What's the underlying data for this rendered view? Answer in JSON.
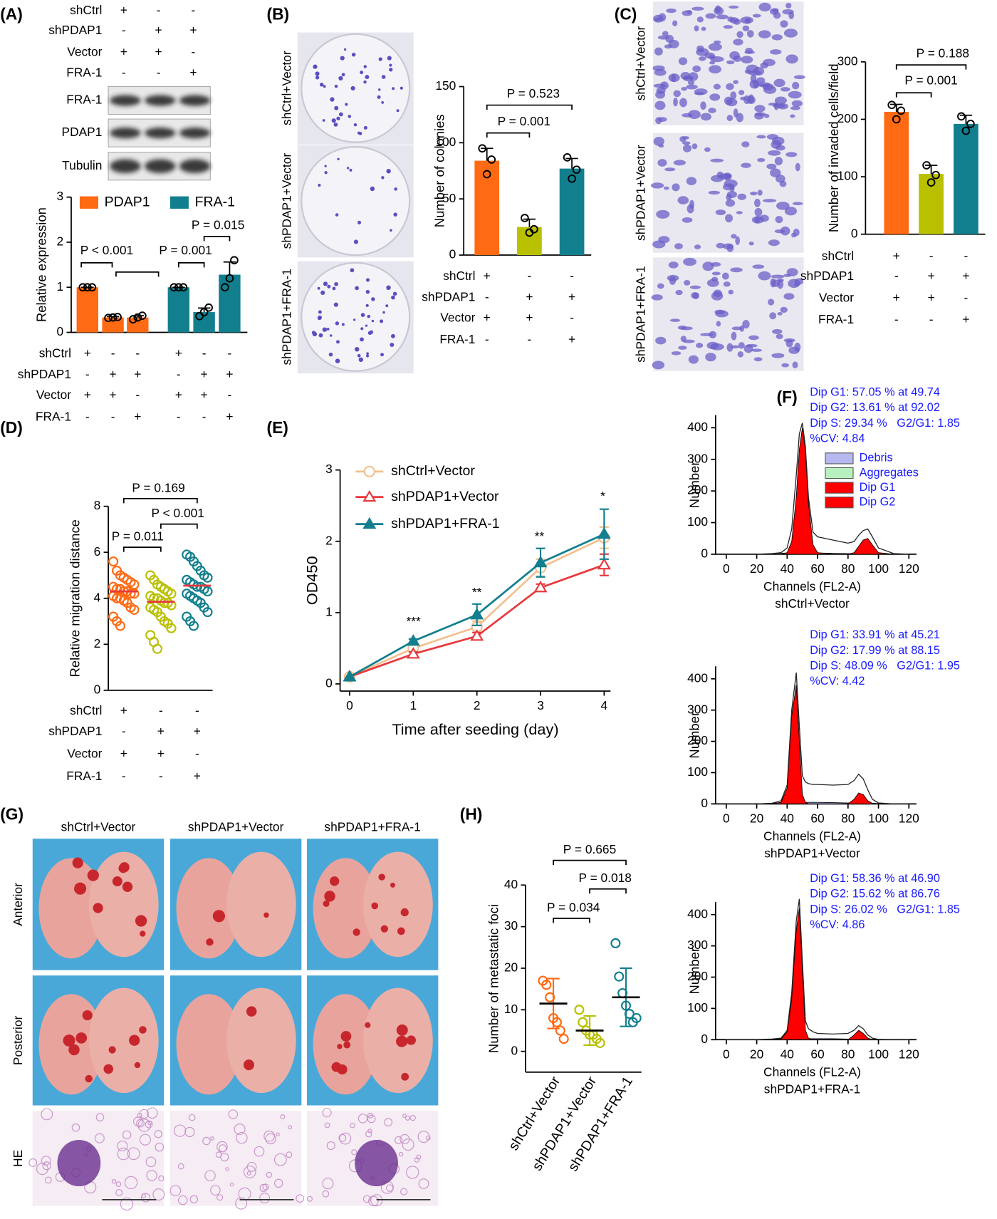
{
  "panel_labels": [
    "(A)",
    "(B)",
    "(C)",
    "(D)",
    "(E)",
    "(F)",
    "(G)",
    "(H)"
  ],
  "blot": {
    "conditions": {
      "labels": [
        "shCtrl",
        "shPDAP1",
        "Vector",
        "FRA-1"
      ],
      "signs": [
        [
          "+",
          "-",
          "-"
        ],
        [
          "-",
          "+",
          "+"
        ],
        [
          "+",
          "+",
          "-"
        ],
        [
          "-",
          "-",
          "+"
        ]
      ]
    },
    "bands": [
      "FRA-1",
      "PDAP1",
      "Tubulin"
    ]
  },
  "colony_images": [
    "shCtrl+Vector",
    "shPDAP1+Vector",
    "shPDAP1+FRA-1"
  ],
  "invasion_images": [
    "shCtrl+Vector",
    "shPDAP1+Vector",
    "shPDAP1+FRA-1"
  ],
  "lung": {
    "columns": [
      "shCtrl+Vector",
      "shPDAP1+Vector",
      "shPDAP1+FRA-1"
    ],
    "rows": [
      "Anterior",
      "Posterior",
      "HE"
    ]
  },
  "chart_data": [
    {
      "type": "bar",
      "ylabel": "Relative expression",
      "ylim": [
        0,
        3
      ],
      "yticks": [
        0,
        1,
        2,
        3
      ],
      "series": [
        {
          "name": "PDAP1",
          "color": "#ff6a13",
          "values": [
            1,
            0.33,
            0.33
          ],
          "errors": [
            0,
            0.02,
            0.04
          ],
          "points": [
            [
              1,
              1,
              1
            ],
            [
              0.32,
              0.33,
              0.34
            ],
            [
              0.29,
              0.33,
              0.37
            ]
          ]
        },
        {
          "name": "FRA-1",
          "color": "#127f8e",
          "values": [
            1,
            0.45,
            1.28
          ],
          "errors": [
            0,
            0.09,
            0.28
          ],
          "points": [
            [
              1,
              1,
              1
            ],
            [
              0.36,
              0.45,
              0.55
            ],
            [
              1.0,
              1.2,
              1.6
            ]
          ]
        }
      ],
      "annotations": [
        "P < 0.001",
        "P = 0.001",
        "P = 0.015"
      ],
      "conditions": {
        "labels": [
          "shCtrl",
          "shPDAP1",
          "Vector",
          "FRA-1"
        ],
        "signs": [
          [
            "+",
            "-",
            "-",
            "+",
            "-",
            "-"
          ],
          [
            "-",
            "+",
            "+",
            "-",
            "+",
            "+"
          ],
          [
            "+",
            "+",
            "-",
            "+",
            "+",
            "-"
          ],
          [
            "-",
            "-",
            "+",
            "-",
            "-",
            "+"
          ]
        ]
      }
    },
    {
      "type": "bar",
      "ylabel": "Number of colonies",
      "ylim": [
        0,
        150
      ],
      "yticks": [
        0,
        50,
        100,
        150
      ],
      "values": [
        84,
        25,
        77
      ],
      "errors": [
        11,
        7,
        9
      ],
      "colors": [
        "#ff6a13",
        "#b9c000",
        "#127f8e"
      ],
      "points": [
        [
          95,
          72,
          85
        ],
        [
          33,
          20,
          23
        ],
        [
          87,
          68,
          76
        ]
      ],
      "annotations": [
        "P = 0.001",
        "P = 0.523"
      ],
      "conditions": {
        "labels": [
          "shCtrl",
          "shPDAP1",
          "Vector",
          "FRA-1"
        ],
        "signs": [
          [
            "+",
            "-",
            "-"
          ],
          [
            "-",
            "+",
            "+"
          ],
          [
            "+",
            "+",
            "-"
          ],
          [
            "-",
            "-",
            "+"
          ]
        ]
      }
    },
    {
      "type": "bar",
      "ylabel": "Number of invaded cells/field",
      "ylim": [
        0,
        300
      ],
      "yticks": [
        0,
        100,
        200,
        300
      ],
      "values": [
        213,
        105,
        192
      ],
      "errors": [
        13,
        15,
        15
      ],
      "colors": [
        "#ff6a13",
        "#b9c000",
        "#127f8e"
      ],
      "points": [
        [
          225,
          200,
          215
        ],
        [
          120,
          90,
          103
        ],
        [
          205,
          180,
          192
        ]
      ],
      "annotations": [
        "P = 0.001",
        "P = 0.188"
      ],
      "conditions": {
        "labels": [
          "shCtrl",
          "shPDAP1",
          "Vector",
          "FRA-1"
        ],
        "signs": [
          [
            "+",
            "-",
            "-"
          ],
          [
            "-",
            "+",
            "+"
          ],
          [
            "+",
            "+",
            "-"
          ],
          [
            "-",
            "-",
            "+"
          ]
        ]
      }
    },
    {
      "type": "dot",
      "ylabel": "Relative migration distance",
      "ylim": [
        0,
        8
      ],
      "yticks": [
        0,
        2,
        4,
        6,
        8
      ],
      "colors": [
        "#ff6a13",
        "#b9c000",
        "#127f8e"
      ],
      "mean_color": "#e8383d",
      "points": [
        [
          5.6,
          5.2,
          5.0,
          4.9,
          4.8,
          4.7,
          4.6,
          4.5,
          4.4,
          4.4,
          4.3,
          4.3,
          4.2,
          4.2,
          4.1,
          4.0,
          4.0,
          3.9,
          3.8,
          3.6,
          3.5,
          3.2,
          3.0,
          2.8
        ],
        [
          5.0,
          4.8,
          4.6,
          4.5,
          4.4,
          4.3,
          4.2,
          4.1,
          4.0,
          4.0,
          3.9,
          3.8,
          3.8,
          3.7,
          3.6,
          3.5,
          3.4,
          3.2,
          3.0,
          2.9,
          2.7,
          2.4,
          2.1,
          1.8
        ],
        [
          5.9,
          5.8,
          5.6,
          5.4,
          5.2,
          5.0,
          4.9,
          4.8,
          4.7,
          4.6,
          4.5,
          4.5,
          4.4,
          4.3,
          4.2,
          4.1,
          4.0,
          3.9,
          3.8,
          3.6,
          3.4,
          3.2,
          3.0,
          2.8
        ]
      ],
      "means": [
        4.3,
        3.85,
        4.55
      ],
      "annotations": [
        "P = 0.011",
        "P < 0.001",
        "P = 0.169"
      ],
      "conditions": {
        "labels": [
          "shCtrl",
          "shPDAP1",
          "Vector",
          "FRA-1"
        ],
        "signs": [
          [
            "+",
            "-",
            "-"
          ],
          [
            "-",
            "+",
            "+"
          ],
          [
            "+",
            "+",
            "-"
          ],
          [
            "-",
            "-",
            "+"
          ]
        ]
      }
    },
    {
      "type": "line",
      "xlabel": "Time after seeding (day)",
      "ylabel": "OD450",
      "x": [
        0,
        1,
        2,
        3,
        4
      ],
      "xlim": [
        -0.15,
        4.1
      ],
      "xticks": [
        0,
        1,
        2,
        3,
        4
      ],
      "ylim": [
        -0.1,
        3
      ],
      "yticks": [
        0,
        1,
        2,
        3
      ],
      "series": [
        {
          "name": "shCtrl+Vector",
          "color": "#f2c08f",
          "marker": "circle-open",
          "values": [
            0.1,
            0.5,
            0.8,
            1.63,
            2.05
          ],
          "errors": [
            0,
            0.03,
            0.08,
            0.12,
            0.15
          ]
        },
        {
          "name": "shPDAP1+Vector",
          "color": "#e8383d",
          "marker": "triangle-open",
          "values": [
            0.1,
            0.42,
            0.67,
            1.35,
            1.67
          ],
          "errors": [
            0,
            0.03,
            0.05,
            0.05,
            0.15
          ]
        },
        {
          "name": "shPDAP1+FRA-1",
          "color": "#127f8e",
          "marker": "triangle",
          "values": [
            0.1,
            0.6,
            0.97,
            1.7,
            2.1
          ],
          "errors": [
            0,
            0.03,
            0.15,
            0.2,
            0.35
          ]
        }
      ],
      "annotations": [
        "***",
        "**",
        "**",
        "*"
      ]
    },
    {
      "type": "area",
      "xlabel": "Channels (FL2-A)",
      "ylabel": "Number",
      "subtitle": "shCtrl+Vector",
      "xlim": [
        -7,
        125
      ],
      "xticks": [
        0,
        20,
        40,
        60,
        80,
        100,
        120
      ],
      "ylim": [
        0,
        440
      ],
      "yticks": [
        0,
        100,
        200,
        300,
        400
      ],
      "x": [
        0,
        10,
        20,
        30,
        36,
        40,
        43,
        46,
        48,
        50,
        52,
        54,
        57,
        60,
        70,
        80,
        84,
        87,
        90,
        93,
        96,
        100,
        110,
        120
      ],
      "values": [
        0,
        0,
        0,
        2,
        5,
        20,
        80,
        250,
        380,
        415,
        340,
        180,
        70,
        55,
        45,
        35,
        40,
        60,
        75,
        80,
        55,
        20,
        2,
        0
      ],
      "series": [
        {
          "name": "Debris",
          "color": "#b8b8f0",
          "values": [
            0,
            0,
            0,
            2,
            3,
            4,
            4,
            4,
            4,
            4,
            4,
            4,
            4,
            4,
            3,
            2,
            2,
            2,
            2,
            2,
            2,
            1,
            0,
            0
          ]
        },
        {
          "name": "Aggregates",
          "color": "#b8f0c0",
          "values": [
            0,
            0,
            0,
            0,
            0,
            0,
            0,
            0,
            0,
            0,
            0,
            0,
            0,
            0,
            0,
            0,
            0,
            0,
            0,
            0,
            0,
            0,
            0,
            0
          ]
        },
        {
          "name": "Dip G1",
          "color": "#ff0000",
          "values": [
            0,
            0,
            0,
            0,
            0,
            5,
            40,
            180,
            330,
            400,
            330,
            160,
            30,
            5,
            0,
            0,
            0,
            0,
            0,
            0,
            0,
            0,
            0,
            0
          ]
        },
        {
          "name": "Dip G2",
          "color": "#ff0000",
          "values": [
            0,
            0,
            0,
            0,
            0,
            0,
            0,
            0,
            0,
            0,
            0,
            0,
            0,
            0,
            0,
            0,
            5,
            25,
            45,
            50,
            30,
            5,
            0,
            0
          ]
        }
      ],
      "annotations": [
        "Dip G1: 57.05 % at 49.74",
        "Dip G2: 13.61 % at 92.02",
        "Dip S: 29.34 %   G2/G1: 1.85",
        "%CV: 4.84"
      ]
    },
    {
      "type": "area",
      "xlabel": "Channels (FL2-A)",
      "ylabel": "Number",
      "subtitle": "shPDAP1+Vector",
      "xlim": [
        -7,
        125
      ],
      "xticks": [
        0,
        20,
        40,
        60,
        80,
        100,
        120
      ],
      "ylim": [
        0,
        440
      ],
      "yticks": [
        0,
        100,
        200,
        300,
        400
      ],
      "x": [
        0,
        10,
        20,
        30,
        36,
        40,
        43,
        46,
        48,
        50,
        52,
        54,
        57,
        60,
        70,
        80,
        84,
        87,
        90,
        93,
        96,
        100,
        110,
        120
      ],
      "values": [
        0,
        0,
        0,
        2,
        10,
        60,
        300,
        420,
        250,
        90,
        70,
        65,
        62,
        62,
        60,
        62,
        75,
        95,
        80,
        45,
        15,
        3,
        0,
        0
      ],
      "series": [
        {
          "color": "#b8b8f0",
          "values": [
            0,
            0,
            0,
            2,
            4,
            5,
            5,
            5,
            5,
            5,
            5,
            5,
            5,
            5,
            4,
            3,
            3,
            3,
            3,
            2,
            2,
            1,
            0,
            0
          ]
        },
        {
          "color": "#ff0000",
          "values": [
            0,
            0,
            0,
            0,
            5,
            50,
            280,
            380,
            200,
            30,
            5,
            0,
            0,
            0,
            0,
            0,
            0,
            0,
            0,
            0,
            0,
            0,
            0,
            0
          ]
        },
        {
          "color": "#ff0000",
          "values": [
            0,
            0,
            0,
            0,
            0,
            0,
            0,
            0,
            0,
            0,
            0,
            0,
            0,
            0,
            0,
            0,
            15,
            35,
            30,
            10,
            2,
            0,
            0,
            0
          ]
        }
      ],
      "annotations": [
        "Dip G1: 33.91 % at 45.21",
        "Dip G2: 17.99 % at 88.15",
        "Dip S: 48.09 %   G2/G1: 1.95",
        "%CV: 4.42"
      ]
    },
    {
      "type": "area",
      "xlabel": "Channels (FL2-A)",
      "ylabel": "Number",
      "subtitle": "shPDAP1+FRA-1",
      "xlim": [
        -7,
        125
      ],
      "xticks": [
        0,
        20,
        40,
        60,
        80,
        100,
        120
      ],
      "ylim": [
        0,
        440
      ],
      "yticks": [
        0,
        100,
        200,
        300,
        400
      ],
      "x": [
        0,
        10,
        20,
        30,
        36,
        40,
        43,
        46,
        48,
        50,
        52,
        54,
        57,
        60,
        70,
        80,
        84,
        87,
        90,
        93,
        96,
        100,
        110,
        120
      ],
      "values": [
        0,
        0,
        0,
        2,
        5,
        30,
        150,
        380,
        450,
        250,
        60,
        35,
        25,
        20,
        18,
        20,
        30,
        45,
        35,
        15,
        5,
        1,
        0,
        0
      ],
      "series": [
        {
          "color": "#b8b8f0",
          "values": [
            0,
            0,
            0,
            2,
            3,
            3,
            3,
            3,
            3,
            3,
            3,
            3,
            3,
            3,
            3,
            2,
            2,
            2,
            2,
            2,
            1,
            1,
            0,
            0
          ]
        },
        {
          "color": "#ff0000",
          "values": [
            0,
            0,
            0,
            0,
            2,
            25,
            130,
            350,
            420,
            220,
            30,
            5,
            0,
            0,
            0,
            0,
            0,
            0,
            0,
            0,
            0,
            0,
            0,
            0
          ]
        },
        {
          "color": "#ff0000",
          "values": [
            0,
            0,
            0,
            0,
            0,
            0,
            0,
            0,
            0,
            0,
            0,
            0,
            0,
            0,
            0,
            0,
            15,
            30,
            20,
            5,
            0,
            0,
            0,
            0
          ]
        }
      ],
      "annotations": [
        "Dip G1: 58.36 % at 46.90",
        "Dip G2: 15.62 % at 86.76",
        "Dip S: 26.02 %   G2/G1: 1.85",
        "%CV: 4.86"
      ]
    },
    {
      "type": "dot",
      "ylabel": "Number of metastatic foci",
      "ylim": [
        -5,
        40
      ],
      "yticks": [
        0,
        10,
        20,
        30,
        40
      ],
      "categories": [
        "shCtrl+Vector",
        "shPDAP1+Vector",
        "shPDAP1+FRA-1"
      ],
      "colors": [
        "#ff6a13",
        "#b9c000",
        "#127f8e"
      ],
      "mean_color": "#000000",
      "points": [
        [
          17,
          16,
          13,
          8,
          7,
          5,
          3
        ],
        [
          10,
          7,
          5,
          4,
          4,
          3,
          2
        ],
        [
          26,
          18,
          14,
          11,
          9,
          7,
          8
        ]
      ],
      "means": [
        11.5,
        5,
        13
      ],
      "sds": [
        6,
        3.5,
        7
      ],
      "annotations": [
        "P = 0.034",
        "P = 0.018",
        "P = 0.665"
      ]
    }
  ]
}
